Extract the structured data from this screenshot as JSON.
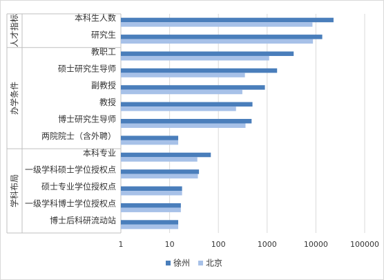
{
  "chart_data": {
    "type": "bar",
    "orientation": "horizontal",
    "x_scale": "log",
    "xlim": [
      1,
      100000
    ],
    "x_ticks": [
      "1",
      "10",
      "100",
      "1000",
      "10000",
      "100000"
    ],
    "grid": true,
    "legend_position": "bottom",
    "groups": [
      {
        "label": "人才指标",
        "categories": [
          "本科生人数",
          "研究生"
        ]
      },
      {
        "label": "办学条件",
        "categories": [
          "教职工",
          "硕士研究生导师",
          "副教授",
          "教授",
          "博士研究生导师",
          "两院院士（含外聘）"
        ]
      },
      {
        "label": "学科布局",
        "categories": [
          "本科专业",
          "一级学科硕士学位授权点",
          "硕士专业学位授权点",
          "一级学科博士学位授权点",
          "博士后科研流动站"
        ]
      }
    ],
    "categories": [
      "本科生人数",
      "研究生",
      "教职工",
      "硕士研究生导师",
      "副教授",
      "教授",
      "博士研究生导师",
      "两院院士（含外聘）",
      "本科专业",
      "一级学科硕士学位授权点",
      "硕士专业学位授权点",
      "一级学科博士学位授权点",
      "博士后科研流动站"
    ],
    "series": [
      {
        "name": "徐州",
        "color": "#4A7EBB",
        "values": [
          23000,
          13500,
          3500,
          1600,
          900,
          500,
          480,
          15,
          70,
          40,
          18,
          17,
          15
        ]
      },
      {
        "name": "北京",
        "color": "#A7C1E8",
        "values": [
          8500,
          8700,
          1100,
          350,
          310,
          230,
          360,
          15,
          37,
          38,
          18,
          17,
          15
        ]
      }
    ]
  }
}
